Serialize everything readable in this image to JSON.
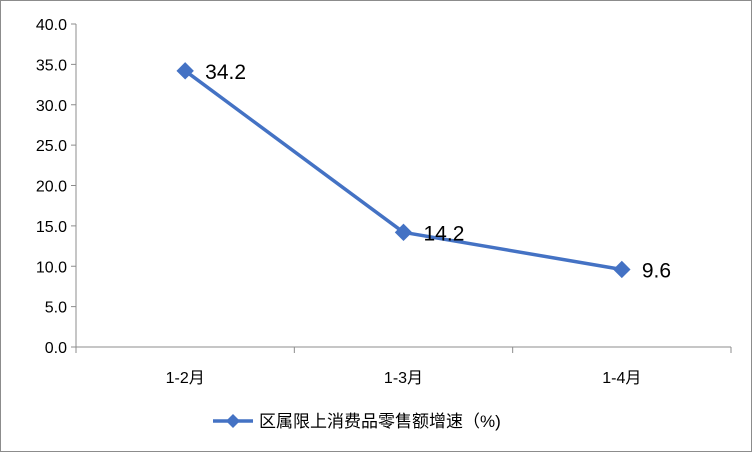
{
  "chart_data": {
    "type": "line",
    "title": "",
    "xlabel": "",
    "ylabel": "",
    "categories": [
      "1-2月",
      "1-3月",
      "1-4月"
    ],
    "series": [
      {
        "name": "区属限上消费品零售额增速（%)",
        "values": [
          34.2,
          14.2,
          9.6
        ],
        "color": "#4472C4"
      }
    ],
    "data_labels": [
      "34.2",
      "14.2",
      "9.6"
    ],
    "y_ticks": [
      "0.0",
      "5.0",
      "10.0",
      "15.0",
      "20.0",
      "25.0",
      "30.0",
      "35.0",
      "40.0"
    ],
    "ylim": [
      0,
      40
    ],
    "grid": false,
    "legend_position": "bottom",
    "marker": "diamond"
  }
}
